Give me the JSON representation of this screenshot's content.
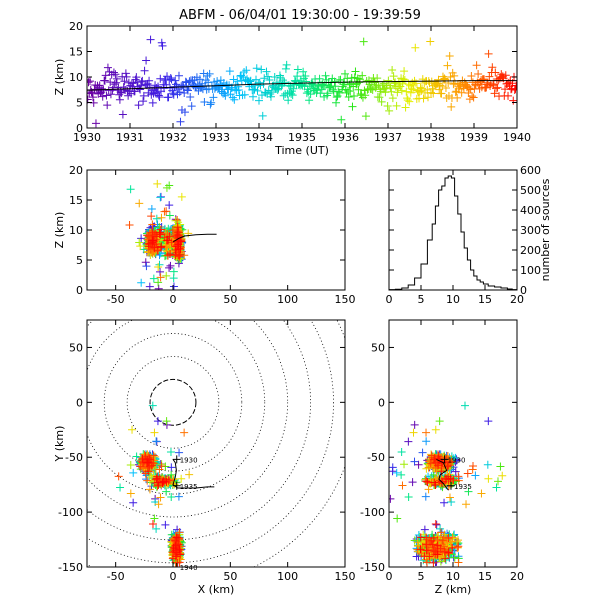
{
  "figure": {
    "title": "ABFM - 06/04/01 19:30:00 - 19:39:59"
  },
  "chart_data": [
    {
      "id": "time-height",
      "type": "scatter",
      "title": "",
      "xlabel": "Time (UT)",
      "ylabel": "Z (km)",
      "xlim": [
        1930,
        1940
      ],
      "ylim": [
        0,
        20
      ],
      "xticks": [
        "1930",
        "1931",
        "1932",
        "1933",
        "1934",
        "1935",
        "1936",
        "1937",
        "1938",
        "1939",
        "1940"
      ],
      "yticks": [
        "0",
        "5",
        "10",
        "15",
        "20"
      ],
      "series": [
        {
          "color": "#000000",
          "marker": "line",
          "x": [
            1930.0,
            1931.0,
            1932.0,
            1933.0,
            1934.0,
            1935.0,
            1936.0,
            1937.0,
            1938.0,
            1939.0,
            1940.0
          ],
          "y": [
            7.4,
            7.7,
            8.0,
            8.3,
            8.6,
            8.8,
            9.0,
            9.1,
            9.2,
            9.3,
            9.3
          ]
        }
      ],
      "color_encoding": "marker color maps to time, violet (19:30) to red (19:40)"
    },
    {
      "id": "x-z",
      "type": "scatter",
      "title": "",
      "xlabel": "",
      "ylabel": "Z (km)",
      "xlim": [
        -75,
        150
      ],
      "ylim": [
        0,
        20
      ],
      "xticks": [
        "-50",
        "0",
        "50",
        "100",
        "150"
      ],
      "yticks": [
        "0",
        "5",
        "10",
        "15",
        "20"
      ],
      "series": [
        {
          "color": "#000000",
          "marker": "line",
          "x": [
            0,
            5,
            10,
            20,
            30,
            38
          ],
          "y": [
            8,
            8.6,
            9.0,
            9.2,
            9.3,
            9.3
          ]
        }
      ]
    },
    {
      "id": "altitude-histogram",
      "type": "line",
      "title": "",
      "xlabel": "",
      "ylabel": "number of sources",
      "xlim": [
        0,
        20
      ],
      "ylim": [
        0,
        600
      ],
      "xticks": [
        "0",
        "5",
        "10",
        "15",
        "20"
      ],
      "yticks": [
        "0",
        "100",
        "200",
        "300",
        "400",
        "500",
        "600"
      ],
      "series": [
        {
          "color": "#000000",
          "x": [
            0.5,
            1.5,
            2.5,
            3.5,
            4.5,
            5.5,
            6.5,
            7.0,
            7.5,
            8.0,
            8.5,
            9.0,
            9.5,
            10.0,
            10.5,
            11.0,
            11.5,
            12.0,
            12.5,
            13.0,
            13.5,
            14.0,
            14.5,
            15.0,
            16.0,
            17.0,
            18.0,
            19.0,
            19.5
          ],
          "y": [
            2,
            4,
            10,
            25,
            60,
            130,
            250,
            330,
            420,
            500,
            520,
            560,
            570,
            560,
            470,
            380,
            290,
            210,
            150,
            100,
            70,
            50,
            40,
            30,
            20,
            15,
            10,
            5,
            2
          ]
        }
      ]
    },
    {
      "id": "plan-view",
      "type": "scatter",
      "title": "",
      "xlabel": "X (km)",
      "ylabel": "Y (km)",
      "xlim": [
        -75,
        150
      ],
      "ylim": [
        -150,
        75
      ],
      "xticks": [
        "-50",
        "0",
        "50",
        "100",
        "150"
      ],
      "yticks": [
        "-150",
        "-100",
        "-50",
        "0",
        "50"
      ],
      "range_rings_km": [
        20,
        40,
        60,
        80,
        100,
        120,
        140,
        160
      ],
      "annotations": [
        {
          "text": "1930",
          "x": 5,
          "y": -52
        },
        {
          "text": "1935",
          "x": 5,
          "y": -76
        },
        {
          "text": "1940",
          "x": 5,
          "y": -150
        }
      ],
      "series": [
        {
          "color": "#000000",
          "marker": "line",
          "x": [
            0,
            2,
            3,
            2,
            0,
            4,
            10,
            20,
            30,
            36
          ],
          "y": [
            -52,
            -55,
            -62,
            -68,
            -75,
            -78,
            -78,
            -78,
            -77,
            -77
          ]
        }
      ]
    },
    {
      "id": "y-z",
      "type": "scatter",
      "title": "",
      "xlabel": "Z (km)",
      "ylabel": "",
      "xlim": [
        0,
        20
      ],
      "ylim": [
        -150,
        75
      ],
      "xticks": [
        "0",
        "5",
        "10",
        "15",
        "20"
      ],
      "yticks": [
        "-150",
        "-100",
        "-50",
        "0",
        "50"
      ],
      "annotations": [
        {
          "text": "1930",
          "x": 9,
          "y": -52
        },
        {
          "text": "1935",
          "x": 10,
          "y": -76
        }
      ],
      "series": [
        {
          "color": "#000000",
          "marker": "line",
          "x": [
            7.4,
            8.5,
            9.0,
            8.0,
            7.8,
            8.5,
            9.0,
            9.3
          ],
          "y": [
            -52,
            -55,
            -62,
            -66,
            -70,
            -74,
            -78,
            -80
          ]
        }
      ]
    }
  ]
}
